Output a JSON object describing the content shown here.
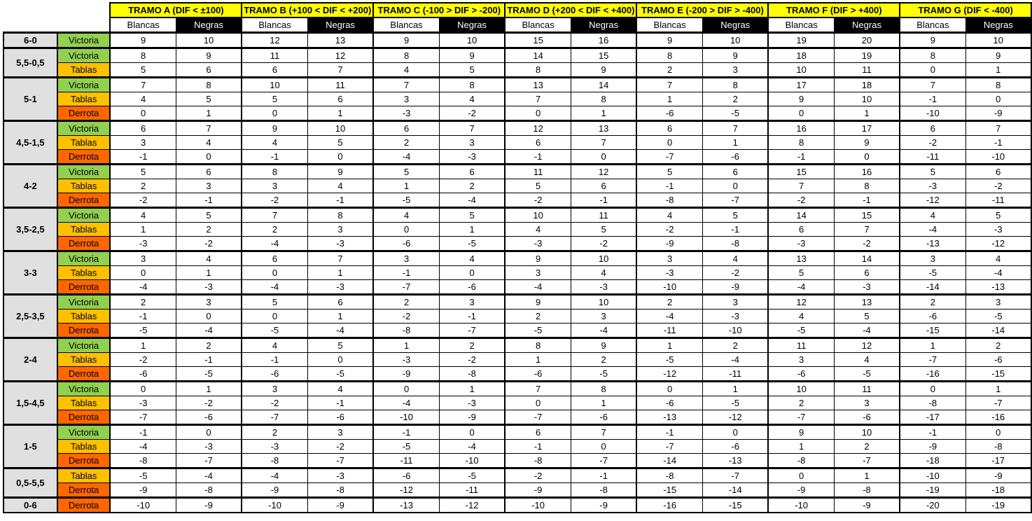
{
  "tramos": [
    "TRAMO A (DIF < ±100)",
    "TRAMO B (+100 < DIF < +200)",
    "TRAMO C (-100 > DIF > -200)",
    "TRAMO D (+200 < DIF < +400)",
    "TRAMO E (-200 > DIF > -400)",
    "TRAMO F (DIF > +400)",
    "TRAMO G (DIF < -400)"
  ],
  "sub_labels": {
    "white": "Blancas",
    "black": "Negras"
  },
  "colors": {
    "header": "#ffff00",
    "victoria": "#92d050",
    "tablas": "#ffc000",
    "derrota": "#ff6600",
    "score_bg": "#e0e0e0"
  },
  "rows": [
    {
      "score": "6-0",
      "results": [
        {
          "label": "Victoria",
          "values": [
            9,
            10,
            12,
            13,
            9,
            10,
            15,
            16,
            9,
            10,
            19,
            20,
            9,
            10
          ]
        }
      ]
    },
    {
      "score": "5,5-0,5",
      "results": [
        {
          "label": "Victoria",
          "values": [
            8,
            9,
            11,
            12,
            8,
            9,
            14,
            15,
            8,
            9,
            18,
            19,
            8,
            9
          ]
        },
        {
          "label": "Tablas",
          "values": [
            5,
            6,
            6,
            7,
            4,
            5,
            8,
            9,
            2,
            3,
            10,
            11,
            0,
            1
          ]
        }
      ]
    },
    {
      "score": "5-1",
      "results": [
        {
          "label": "Victoria",
          "values": [
            7,
            8,
            10,
            11,
            7,
            8,
            13,
            14,
            7,
            8,
            17,
            18,
            7,
            8
          ]
        },
        {
          "label": "Tablas",
          "values": [
            4,
            5,
            5,
            6,
            3,
            4,
            7,
            8,
            1,
            2,
            9,
            10,
            -1,
            0
          ]
        },
        {
          "label": "Derrota",
          "values": [
            0,
            1,
            0,
            1,
            -3,
            -2,
            0,
            1,
            -6,
            -5,
            0,
            1,
            -10,
            -9
          ]
        }
      ]
    },
    {
      "score": "4,5-1,5",
      "results": [
        {
          "label": "Victoria",
          "values": [
            6,
            7,
            9,
            10,
            6,
            7,
            12,
            13,
            6,
            7,
            16,
            17,
            6,
            7
          ]
        },
        {
          "label": "Tablas",
          "values": [
            3,
            4,
            4,
            5,
            2,
            3,
            6,
            7,
            0,
            1,
            8,
            9,
            -2,
            -1
          ]
        },
        {
          "label": "Derrota",
          "values": [
            -1,
            0,
            -1,
            0,
            -4,
            -3,
            -1,
            0,
            -7,
            -6,
            -1,
            0,
            -11,
            -10
          ]
        }
      ]
    },
    {
      "score": "4-2",
      "results": [
        {
          "label": "Victoria",
          "values": [
            5,
            6,
            8,
            9,
            5,
            6,
            11,
            12,
            5,
            6,
            15,
            16,
            5,
            6
          ]
        },
        {
          "label": "Tablas",
          "values": [
            2,
            3,
            3,
            4,
            1,
            2,
            5,
            6,
            -1,
            0,
            7,
            8,
            -3,
            -2
          ]
        },
        {
          "label": "Derrota",
          "values": [
            -2,
            -1,
            -2,
            -1,
            -5,
            -4,
            -2,
            -1,
            -8,
            -7,
            -2,
            -1,
            -12,
            -11
          ]
        }
      ]
    },
    {
      "score": "3,5-2,5",
      "results": [
        {
          "label": "Victoria",
          "values": [
            4,
            5,
            7,
            8,
            4,
            5,
            10,
            11,
            4,
            5,
            14,
            15,
            4,
            5
          ]
        },
        {
          "label": "Tablas",
          "values": [
            1,
            2,
            2,
            3,
            0,
            1,
            4,
            5,
            -2,
            -1,
            6,
            7,
            -4,
            -3
          ]
        },
        {
          "label": "Derrota",
          "values": [
            -3,
            -2,
            -4,
            -3,
            -6,
            -5,
            -3,
            -2,
            -9,
            -8,
            -3,
            -2,
            -13,
            -12
          ]
        }
      ]
    },
    {
      "score": "3-3",
      "results": [
        {
          "label": "Victoria",
          "values": [
            3,
            4,
            6,
            7,
            3,
            4,
            9,
            10,
            3,
            4,
            13,
            14,
            3,
            4
          ]
        },
        {
          "label": "Tablas",
          "values": [
            0,
            1,
            0,
            1,
            -1,
            0,
            3,
            4,
            -3,
            -2,
            5,
            6,
            -5,
            -4
          ]
        },
        {
          "label": "Derrota",
          "values": [
            -4,
            -3,
            -4,
            -3,
            -7,
            -6,
            -4,
            -3,
            -10,
            -9,
            -4,
            -3,
            -14,
            -13
          ]
        }
      ]
    },
    {
      "score": "2,5-3,5",
      "results": [
        {
          "label": "Victoria",
          "values": [
            2,
            3,
            5,
            6,
            2,
            3,
            9,
            10,
            2,
            3,
            12,
            13,
            2,
            3
          ]
        },
        {
          "label": "Tablas",
          "values": [
            -1,
            0,
            0,
            1,
            -2,
            -1,
            2,
            3,
            -4,
            -3,
            4,
            5,
            -6,
            -5
          ]
        },
        {
          "label": "Derrota",
          "values": [
            -5,
            -4,
            -5,
            -4,
            -8,
            -7,
            -5,
            -4,
            -11,
            -10,
            -5,
            -4,
            -15,
            -14
          ]
        }
      ]
    },
    {
      "score": "2-4",
      "results": [
        {
          "label": "Victoria",
          "values": [
            1,
            2,
            4,
            5,
            1,
            2,
            8,
            9,
            1,
            2,
            11,
            12,
            1,
            2
          ]
        },
        {
          "label": "Tablas",
          "values": [
            -2,
            -1,
            -1,
            0,
            -3,
            -2,
            1,
            2,
            -5,
            -4,
            3,
            4,
            -7,
            -6
          ]
        },
        {
          "label": "Derrota",
          "values": [
            -6,
            -5,
            -6,
            -5,
            -9,
            -8,
            -6,
            -5,
            -12,
            -11,
            -6,
            -5,
            -16,
            -15
          ]
        }
      ]
    },
    {
      "score": "1,5-4,5",
      "results": [
        {
          "label": "Victoria",
          "values": [
            0,
            1,
            3,
            4,
            0,
            1,
            7,
            8,
            0,
            1,
            10,
            11,
            0,
            1
          ]
        },
        {
          "label": "Tablas",
          "values": [
            -3,
            -2,
            -2,
            -1,
            -4,
            -3,
            0,
            1,
            -6,
            -5,
            2,
            3,
            -8,
            -7
          ]
        },
        {
          "label": "Derrota",
          "values": [
            -7,
            -6,
            -7,
            -6,
            -10,
            -9,
            -7,
            -6,
            -13,
            -12,
            -7,
            -6,
            -17,
            -16
          ]
        }
      ]
    },
    {
      "score": "1-5",
      "results": [
        {
          "label": "Victoria",
          "values": [
            -1,
            0,
            2,
            3,
            -1,
            0,
            6,
            7,
            -1,
            0,
            9,
            10,
            -1,
            0
          ]
        },
        {
          "label": "Tablas",
          "values": [
            -4,
            -3,
            -3,
            -2,
            -5,
            -4,
            -1,
            0,
            -7,
            -6,
            1,
            2,
            -9,
            -8
          ]
        },
        {
          "label": "Derrota",
          "values": [
            -8,
            -7,
            -8,
            -7,
            -11,
            -10,
            -8,
            -7,
            -14,
            -13,
            -8,
            -7,
            -18,
            -17
          ]
        }
      ]
    },
    {
      "score": "0,5-5,5",
      "results": [
        {
          "label": "Tablas",
          "values": [
            -5,
            -4,
            -4,
            -3,
            -6,
            -5,
            -2,
            -1,
            -8,
            -7,
            0,
            1,
            -10,
            -9
          ]
        },
        {
          "label": "Derrota",
          "values": [
            -9,
            -8,
            -9,
            -8,
            -12,
            -11,
            -9,
            -8,
            -15,
            -14,
            -9,
            -8,
            -19,
            -18
          ]
        }
      ]
    },
    {
      "score": "0-6",
      "results": [
        {
          "label": "Derrota",
          "values": [
            -10,
            -9,
            -10,
            -9,
            -13,
            -12,
            -10,
            -9,
            -16,
            -15,
            -10,
            -9,
            -20,
            -19
          ]
        }
      ]
    }
  ]
}
